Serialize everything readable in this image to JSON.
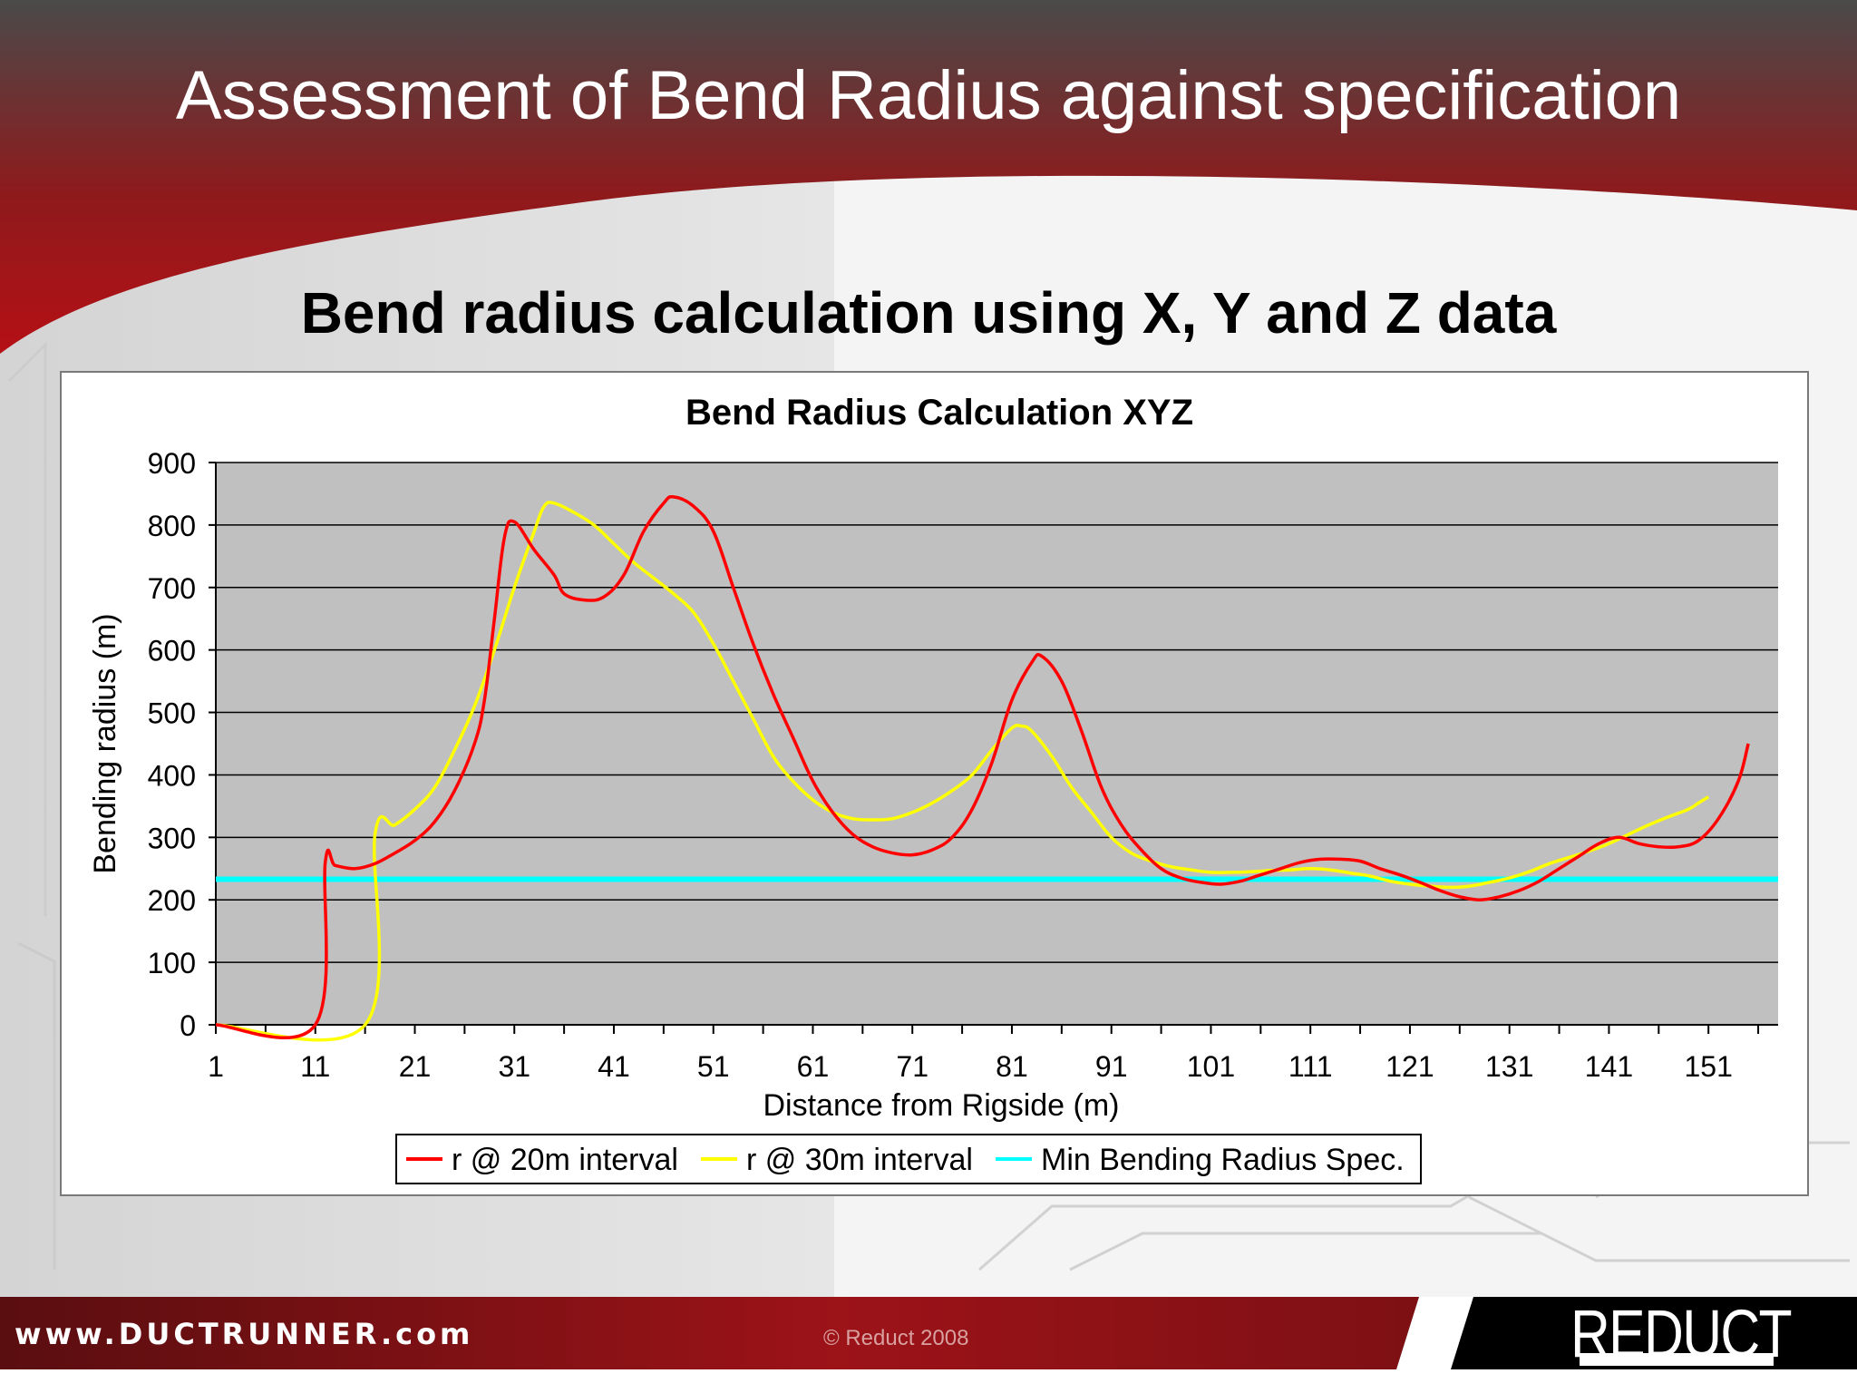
{
  "slide": {
    "title": "Assessment of Bend Radius against specification",
    "subtitle": "Bend radius calculation using X, Y and Z data"
  },
  "footer": {
    "website": "www.DUCTRUNNER.com",
    "copyright": "© Reduct 2008",
    "logo": "REDUCT"
  },
  "colors": {
    "header_red": "#a60f14",
    "plot_area": "#c0c0c0",
    "series_20m": "#ff0000",
    "series_30m": "#ffff00",
    "spec_line": "#00ffff"
  },
  "chart_data": {
    "type": "line",
    "title": "Bend Radius Calculation XYZ",
    "xlabel": "Distance from Rigside (m)",
    "ylabel": "Bending radius (m)",
    "xlim": [
      1,
      158
    ],
    "ylim": [
      0,
      900
    ],
    "x_ticks": [
      1,
      11,
      21,
      31,
      41,
      51,
      61,
      71,
      81,
      91,
      101,
      111,
      121,
      131,
      141,
      151
    ],
    "y_ticks": [
      0,
      100,
      200,
      300,
      400,
      500,
      600,
      700,
      800,
      900
    ],
    "grid": "horizontal",
    "legend_position": "bottom",
    "series": [
      {
        "name": "r @ 20m interval",
        "color": "#ff0000",
        "points": [
          [
            1,
            0
          ],
          [
            11,
            0
          ],
          [
            12,
            260
          ],
          [
            13,
            255
          ],
          [
            15,
            250
          ],
          [
            17,
            258
          ],
          [
            19,
            275
          ],
          [
            21,
            295
          ],
          [
            23,
            325
          ],
          [
            25,
            375
          ],
          [
            27,
            450
          ],
          [
            28,
            520
          ],
          [
            29,
            650
          ],
          [
            30,
            780
          ],
          [
            31,
            805
          ],
          [
            33,
            760
          ],
          [
            35,
            720
          ],
          [
            36,
            690
          ],
          [
            38,
            680
          ],
          [
            40,
            685
          ],
          [
            42,
            720
          ],
          [
            44,
            790
          ],
          [
            46,
            835
          ],
          [
            47,
            845
          ],
          [
            49,
            830
          ],
          [
            51,
            790
          ],
          [
            53,
            700
          ],
          [
            55,
            610
          ],
          [
            57,
            530
          ],
          [
            59,
            460
          ],
          [
            61,
            390
          ],
          [
            63,
            340
          ],
          [
            65,
            305
          ],
          [
            67,
            285
          ],
          [
            69,
            275
          ],
          [
            71,
            272
          ],
          [
            73,
            280
          ],
          [
            75,
            300
          ],
          [
            77,
            345
          ],
          [
            79,
            420
          ],
          [
            81,
            520
          ],
          [
            83,
            580
          ],
          [
            84,
            590
          ],
          [
            86,
            550
          ],
          [
            88,
            470
          ],
          [
            90,
            380
          ],
          [
            92,
            320
          ],
          [
            94,
            280
          ],
          [
            96,
            250
          ],
          [
            98,
            235
          ],
          [
            100,
            228
          ],
          [
            102,
            225
          ],
          [
            104,
            230
          ],
          [
            106,
            240
          ],
          [
            108,
            250
          ],
          [
            110,
            260
          ],
          [
            112,
            265
          ],
          [
            114,
            265
          ],
          [
            116,
            262
          ],
          [
            118,
            250
          ],
          [
            120,
            240
          ],
          [
            122,
            228
          ],
          [
            124,
            215
          ],
          [
            126,
            205
          ],
          [
            128,
            200
          ],
          [
            130,
            205
          ],
          [
            132,
            215
          ],
          [
            134,
            230
          ],
          [
            136,
            250
          ],
          [
            138,
            270
          ],
          [
            140,
            290
          ],
          [
            142,
            300
          ],
          [
            144,
            290
          ],
          [
            146,
            285
          ],
          [
            148,
            285
          ],
          [
            150,
            295
          ],
          [
            152,
            330
          ],
          [
            154,
            390
          ],
          [
            155,
            450
          ]
        ]
      },
      {
        "name": "r @ 30m interval",
        "color": "#ffff00",
        "points": [
          [
            1,
            0
          ],
          [
            16,
            0
          ],
          [
            17,
            305
          ],
          [
            19,
            320
          ],
          [
            21,
            345
          ],
          [
            23,
            380
          ],
          [
            25,
            440
          ],
          [
            27,
            510
          ],
          [
            29,
            600
          ],
          [
            31,
            700
          ],
          [
            33,
            790
          ],
          [
            34,
            830
          ],
          [
            35,
            835
          ],
          [
            37,
            820
          ],
          [
            39,
            800
          ],
          [
            41,
            770
          ],
          [
            43,
            740
          ],
          [
            45,
            715
          ],
          [
            47,
            690
          ],
          [
            49,
            660
          ],
          [
            51,
            610
          ],
          [
            53,
            550
          ],
          [
            55,
            490
          ],
          [
            57,
            430
          ],
          [
            59,
            390
          ],
          [
            61,
            360
          ],
          [
            63,
            340
          ],
          [
            65,
            330
          ],
          [
            67,
            328
          ],
          [
            69,
            330
          ],
          [
            71,
            340
          ],
          [
            73,
            355
          ],
          [
            75,
            375
          ],
          [
            77,
            400
          ],
          [
            79,
            440
          ],
          [
            81,
            475
          ],
          [
            82,
            478
          ],
          [
            83,
            470
          ],
          [
            85,
            430
          ],
          [
            87,
            380
          ],
          [
            89,
            340
          ],
          [
            91,
            300
          ],
          [
            93,
            275
          ],
          [
            95,
            262
          ],
          [
            97,
            253
          ],
          [
            99,
            248
          ],
          [
            101,
            244
          ],
          [
            103,
            244
          ],
          [
            105,
            245
          ],
          [
            107,
            247
          ],
          [
            109,
            248
          ],
          [
            111,
            250
          ],
          [
            113,
            248
          ],
          [
            115,
            243
          ],
          [
            117,
            238
          ],
          [
            119,
            230
          ],
          [
            121,
            225
          ],
          [
            123,
            222
          ],
          [
            125,
            220
          ],
          [
            127,
            222
          ],
          [
            129,
            228
          ],
          [
            131,
            235
          ],
          [
            133,
            245
          ],
          [
            135,
            258
          ],
          [
            137,
            268
          ],
          [
            139,
            278
          ],
          [
            141,
            290
          ],
          [
            143,
            305
          ],
          [
            145,
            320
          ],
          [
            147,
            333
          ],
          [
            149,
            345
          ],
          [
            150,
            355
          ],
          [
            151,
            365
          ]
        ]
      },
      {
        "name": "Min Bending Radius Spec.",
        "color": "#00ffff",
        "points": [
          [
            1,
            233
          ],
          [
            158,
            233
          ]
        ]
      }
    ]
  }
}
